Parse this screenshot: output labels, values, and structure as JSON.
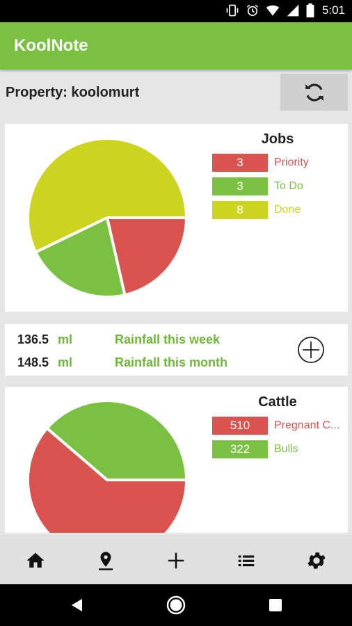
{
  "status_bar": {
    "time": "5:01"
  },
  "app": {
    "title": "KoolNote"
  },
  "property": {
    "label": "Property: koolomurt"
  },
  "jobs": {
    "title": "Jobs",
    "legend": [
      {
        "value": "3",
        "label": "Priority",
        "color": "#d9534f"
      },
      {
        "value": "3",
        "label": "To Do",
        "color": "#7ac143"
      },
      {
        "value": "8",
        "label": "Done",
        "color": "#cdd41f"
      }
    ]
  },
  "rainfall": {
    "week": {
      "value": "136.5",
      "unit": "ml",
      "label": "Rainfall this week"
    },
    "month": {
      "value": "148.5",
      "unit": "ml",
      "label": "Rainfall this month"
    }
  },
  "cattle": {
    "title": "Cattle",
    "legend": [
      {
        "value": "510",
        "label": "Pregnant C...",
        "color": "#d9534f"
      },
      {
        "value": "322",
        "label": "Bulls",
        "color": "#7ac143"
      }
    ]
  },
  "bottom_nav": {
    "items": [
      {
        "icon": "home-icon"
      },
      {
        "icon": "location-icon"
      },
      {
        "icon": "add-icon"
      },
      {
        "icon": "list-icon"
      },
      {
        "icon": "settings-icon"
      }
    ]
  },
  "colors": {
    "accent": "#7ac143",
    "priority": "#d9534f",
    "done": "#cdd41f"
  }
}
